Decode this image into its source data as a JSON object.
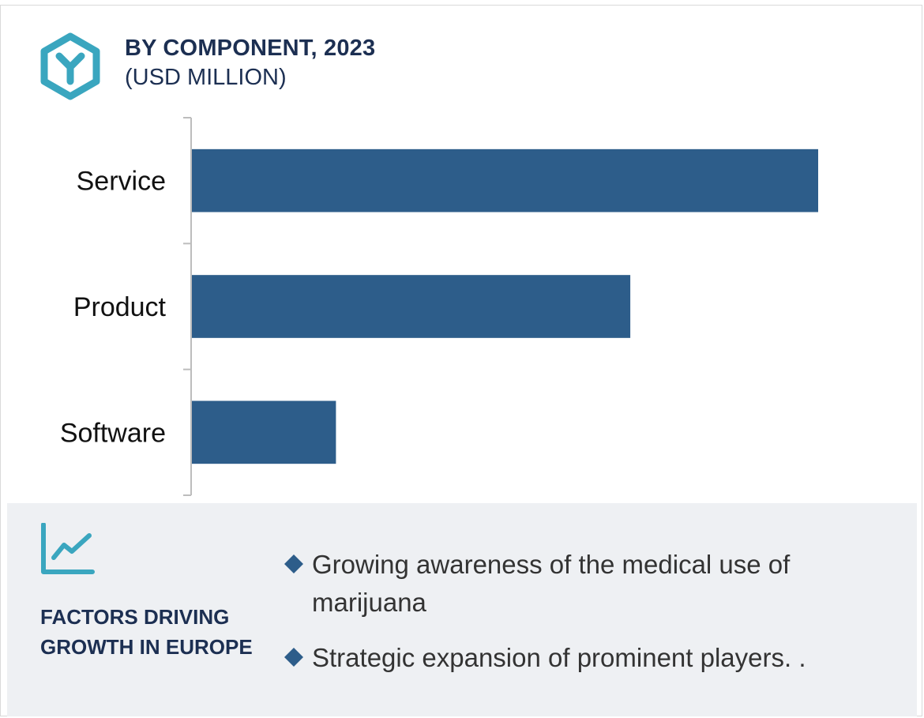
{
  "header": {
    "title": "BY COMPONENT, 2023",
    "subtitle": "(USD MILLION)"
  },
  "colors": {
    "bar": "#2d5d8a",
    "title": "#1c2f52",
    "accent": "#3aa6bf",
    "panel": "#eef0f3"
  },
  "icons": {
    "logo": "hexagon-y-logo-icon",
    "trend": "line-chart-icon",
    "bullet": "diamond-bullet-icon"
  },
  "chart_data": {
    "type": "bar",
    "orientation": "horizontal",
    "categories": [
      "Service",
      "Product",
      "Software"
    ],
    "values": [
      100,
      70,
      23
    ],
    "values_note": "relative bar lengths; no axis values printed",
    "title": "BY COMPONENT, 2023",
    "xlabel": "",
    "ylabel": "",
    "grid": false
  },
  "factors": {
    "title": "FACTORS DRIVING GROWTH IN EUROPE",
    "items": [
      "Growing awareness of the medical use of marijuana",
      "Strategic expansion of prominent players. ."
    ]
  }
}
